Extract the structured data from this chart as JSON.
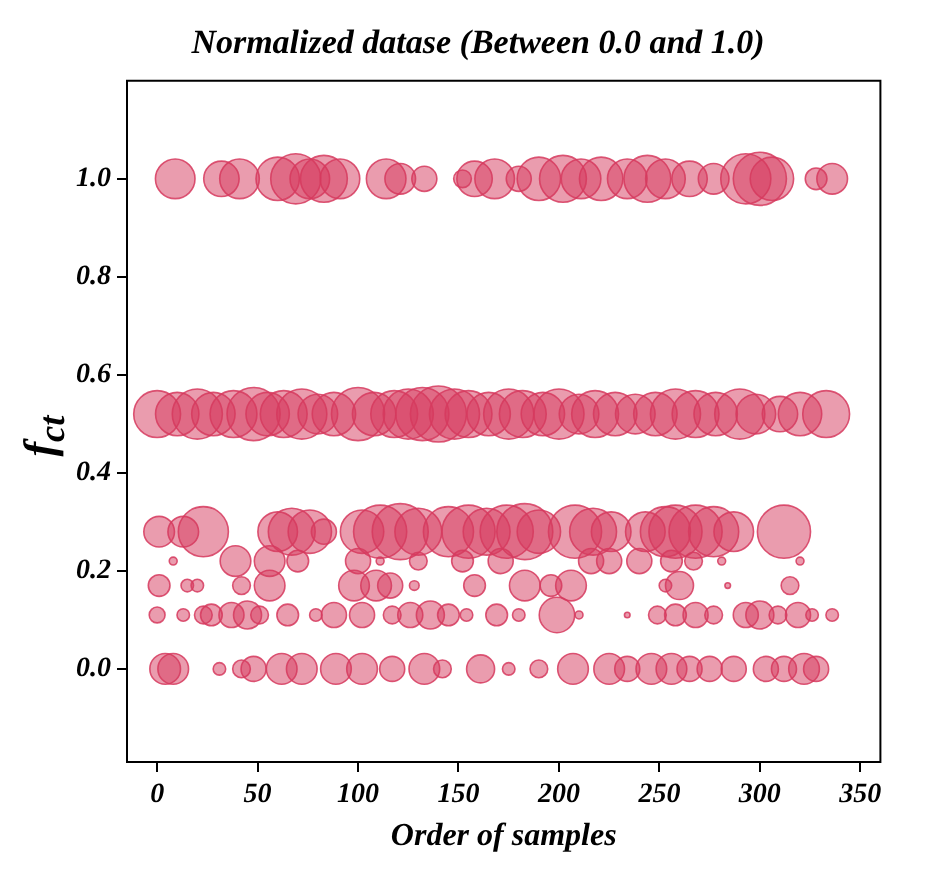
{
  "chart_data": {
    "type": "bubble",
    "title": "Normalized datase (Between 0.0 and 1.0)",
    "xlabel": "Order of samples",
    "ylabel": "f$_{ct}$",
    "color": "#d63a5e",
    "marker": "circle",
    "grid": false,
    "legend": false,
    "x": [
      9,
      32,
      41,
      60,
      69,
      76,
      83,
      91,
      114,
      121,
      133,
      152,
      158,
      168,
      180,
      190,
      202,
      211,
      221,
      234,
      244,
      253,
      265,
      277,
      293,
      300,
      306,
      328,
      336,
      0,
      10,
      20,
      28,
      38,
      48,
      55,
      63,
      72,
      80,
      88,
      100,
      108,
      118,
      125,
      132,
      140,
      148,
      155,
      165,
      175,
      182,
      192,
      200,
      210,
      218,
      228,
      238,
      248,
      258,
      268,
      278,
      290,
      298,
      310,
      320,
      333,
      1,
      13,
      23,
      60,
      67,
      76,
      83,
      102,
      111,
      121,
      130,
      145,
      155,
      164,
      174,
      183,
      190,
      208,
      217,
      226,
      243,
      253,
      258,
      268,
      277,
      287,
      312,
      8,
      39,
      56,
      70,
      100,
      111,
      130,
      152,
      171,
      216,
      225,
      240,
      256,
      267,
      281,
      320,
      1,
      15,
      20,
      42,
      56,
      98,
      109,
      116,
      128,
      158,
      183,
      196,
      206,
      253,
      260,
      284,
      315,
      0,
      13,
      23,
      27,
      37,
      45,
      51,
      65,
      79,
      88,
      102,
      117,
      126,
      136,
      145,
      154,
      169,
      180,
      199,
      210,
      234,
      249,
      258,
      268,
      277,
      293,
      300,
      309,
      319,
      326,
      336,
      4,
      8,
      31,
      42,
      48,
      62,
      72,
      89,
      102,
      117,
      133,
      142,
      161,
      175,
      190,
      207,
      225,
      234,
      246,
      256,
      265,
      275,
      287,
      303,
      312,
      322,
      328
    ],
    "values": [
      1,
      1,
      1,
      1,
      1,
      1,
      1,
      1,
      1,
      1,
      1,
      1,
      1,
      1,
      1,
      1,
      1,
      1,
      1,
      1,
      1,
      1,
      1,
      1,
      1,
      1,
      1,
      1,
      1,
      0.52,
      0.52,
      0.52,
      0.52,
      0.52,
      0.52,
      0.52,
      0.52,
      0.52,
      0.52,
      0.52,
      0.52,
      0.52,
      0.52,
      0.52,
      0.52,
      0.52,
      0.52,
      0.52,
      0.52,
      0.52,
      0.52,
      0.52,
      0.52,
      0.52,
      0.52,
      0.52,
      0.52,
      0.52,
      0.52,
      0.52,
      0.52,
      0.52,
      0.52,
      0.52,
      0.52,
      0.52,
      0.28,
      0.28,
      0.28,
      0.28,
      0.28,
      0.28,
      0.28,
      0.28,
      0.28,
      0.28,
      0.28,
      0.28,
      0.28,
      0.28,
      0.28,
      0.28,
      0.28,
      0.28,
      0.28,
      0.28,
      0.28,
      0.28,
      0.28,
      0.28,
      0.28,
      0.28,
      0.28,
      0.22,
      0.22,
      0.22,
      0.22,
      0.22,
      0.22,
      0.22,
      0.22,
      0.22,
      0.22,
      0.22,
      0.22,
      0.22,
      0.22,
      0.22,
      0.22,
      0.17,
      0.17,
      0.17,
      0.17,
      0.17,
      0.17,
      0.17,
      0.17,
      0.17,
      0.17,
      0.17,
      0.17,
      0.17,
      0.17,
      0.17,
      0.17,
      0.17,
      0.11,
      0.11,
      0.11,
      0.11,
      0.11,
      0.11,
      0.11,
      0.11,
      0.11,
      0.11,
      0.11,
      0.11,
      0.11,
      0.11,
      0.11,
      0.11,
      0.11,
      0.11,
      0.11,
      0.11,
      0.11,
      0.11,
      0.11,
      0.11,
      0.11,
      0.11,
      0.11,
      0.11,
      0.11,
      0.11,
      0.11,
      0,
      0,
      0,
      0,
      0,
      0,
      0,
      0,
      0,
      0,
      0,
      0,
      0,
      0,
      0,
      0,
      0,
      0,
      0,
      0,
      0,
      0,
      0,
      0,
      0,
      0,
      0
    ],
    "sizes": [
      0.5,
      0.4,
      0.5,
      0.6,
      0.8,
      0.5,
      0.7,
      0.5,
      0.5,
      0.3,
      0.2,
      0.1,
      0.4,
      0.5,
      0.2,
      0.6,
      0.7,
      0.5,
      0.6,
      0.5,
      0.7,
      0.5,
      0.4,
      0.3,
      0.8,
      0.9,
      0.6,
      0.15,
      0.3,
      0.7,
      0.6,
      0.8,
      0.6,
      0.7,
      0.9,
      0.6,
      0.7,
      0.8,
      0.5,
      0.6,
      0.9,
      0.6,
      0.7,
      0.8,
      0.9,
      1,
      0.8,
      0.7,
      0.6,
      0.8,
      0.7,
      0.6,
      0.8,
      0.5,
      0.7,
      0.6,
      0.5,
      0.6,
      0.8,
      0.7,
      0.6,
      0.8,
      0.5,
      0.4,
      0.6,
      0.7,
      0.3,
      0.3,
      0.8,
      0.5,
      0.7,
      0.6,
      0.2,
      0.6,
      0.9,
      1,
      0.7,
      0.8,
      0.9,
      0.7,
      0.9,
      1,
      0.6,
      0.9,
      0.7,
      0.5,
      0.5,
      0.8,
      0.9,
      0.9,
      0.8,
      0.5,
      0.9,
      0.02,
      0.3,
      0.3,
      0.15,
      0.2,
      0.02,
      0.1,
      0.15,
      0.2,
      0.2,
      0.2,
      0.2,
      0.15,
      0.1,
      0.02,
      0.02,
      0.15,
      0.05,
      0.05,
      0.1,
      0.3,
      0.3,
      0.3,
      0.2,
      0.03,
      0.15,
      0.3,
      0.15,
      0.3,
      0.05,
      0.25,
      0.01,
      0.1,
      0.08,
      0.05,
      0.1,
      0.15,
      0.2,
      0.25,
      0.1,
      0.15,
      0.05,
      0.2,
      0.2,
      0.1,
      0.2,
      0.25,
      0.15,
      0.05,
      0.15,
      0.05,
      0.4,
      0.02,
      0.01,
      0.1,
      0.15,
      0.2,
      0.1,
      0.2,
      0.25,
      0.1,
      0.2,
      0.05,
      0.05,
      0.3,
      0.3,
      0.05,
      0.1,
      0.2,
      0.3,
      0.3,
      0.3,
      0.3,
      0.2,
      0.3,
      0.1,
      0.25,
      0.05,
      0.1,
      0.3,
      0.3,
      0.2,
      0.3,
      0.3,
      0.2,
      0.2,
      0.2,
      0.2,
      0.2,
      0.3,
      0.2
    ],
    "xlim": [
      -15,
      360
    ],
    "xticks": [
      0,
      50,
      100,
      150,
      200,
      250,
      300,
      350
    ],
    "ylim": [
      -0.19,
      1.2
    ],
    "yticks": [
      {
        "value": 0,
        "label": "0.0"
      },
      {
        "value": 0.2,
        "label": "0.2"
      },
      {
        "value": 0.4,
        "label": "0.4"
      },
      {
        "value": 0.6,
        "label": "0.6"
      },
      {
        "value": 0.8,
        "label": "0.8"
      },
      {
        "value": 1,
        "label": "1.0"
      }
    ]
  }
}
